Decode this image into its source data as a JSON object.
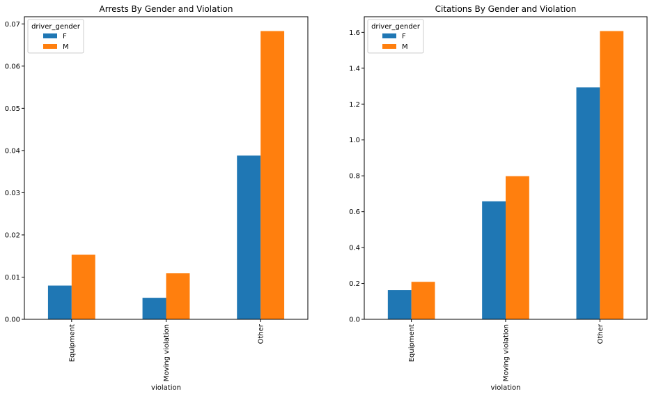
{
  "colors": {
    "F": "#1f77b4",
    "M": "#ff7f0e"
  },
  "chart_data": [
    {
      "type": "bar",
      "title": "Arrests By Gender and Violation",
      "xlabel": "violation",
      "ylabel": "",
      "categories": [
        "Equipment",
        "Moving violation",
        "Other"
      ],
      "series": [
        {
          "name": "F",
          "values": [
            0.008,
            0.0051,
            0.0388
          ]
        },
        {
          "name": "M",
          "values": [
            0.0153,
            0.0109,
            0.0683
          ]
        }
      ],
      "ylim": [
        0,
        0.0717
      ],
      "yticks": [
        0.0,
        0.01,
        0.02,
        0.03,
        0.04,
        0.05,
        0.06,
        0.07
      ],
      "ytick_labels": [
        "0.00",
        "0.01",
        "0.02",
        "0.03",
        "0.04",
        "0.05",
        "0.06",
        "0.07"
      ],
      "legend_title": "driver_gender",
      "legend_position": "top-left",
      "grid": false
    },
    {
      "type": "bar",
      "title": "Citations By Gender and Violation",
      "xlabel": "violation",
      "ylabel": "",
      "categories": [
        "Equipment",
        "Moving violation",
        "Other"
      ],
      "series": [
        {
          "name": "F",
          "values": [
            0.163,
            0.658,
            1.293
          ]
        },
        {
          "name": "M",
          "values": [
            0.209,
            0.798,
            1.607
          ]
        }
      ],
      "ylim": [
        0,
        1.687
      ],
      "yticks": [
        0.0,
        0.2,
        0.4,
        0.6,
        0.8,
        1.0,
        1.2,
        1.4,
        1.6
      ],
      "ytick_labels": [
        "0.0",
        "0.2",
        "0.4",
        "0.6",
        "0.8",
        "1.0",
        "1.2",
        "1.4",
        "1.6"
      ],
      "legend_title": "driver_gender",
      "legend_position": "top-left",
      "grid": false
    }
  ]
}
